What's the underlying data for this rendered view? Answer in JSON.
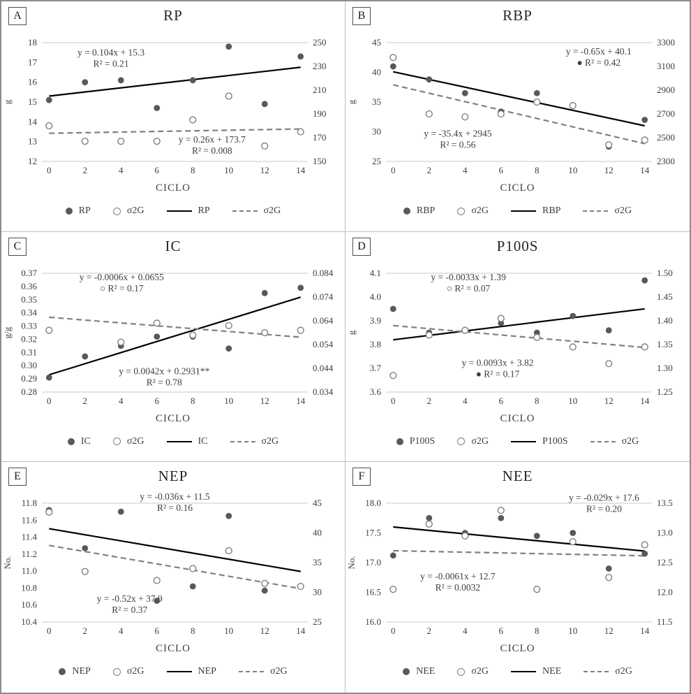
{
  "colors": {
    "point_filled": "#595959",
    "point_open_stroke": "#7f7f7f",
    "trend_solid": "#000000",
    "trend_dashed": "#7f7f7f",
    "text": "#3d3d3d",
    "gridline": "#c9c9c9",
    "panel_border": "#bfbfbf",
    "outer_border": "#8c8c8c"
  },
  "chart_data": [
    {
      "id": "A",
      "type": "scatter",
      "title": "RP",
      "xlabel": "CICLO",
      "ylabel_left": "g",
      "x_range": [
        -0.4,
        14.4
      ],
      "x_ticks": [
        "0",
        "2",
        "4",
        "6",
        "8",
        "10",
        "12",
        "14"
      ],
      "axis_left": {
        "range": [
          12,
          18
        ],
        "ticks": [
          "12",
          "13",
          "14",
          "15",
          "16",
          "17",
          "18"
        ]
      },
      "axis_right": {
        "range": [
          150,
          250
        ],
        "ticks": [
          "150",
          "170",
          "190",
          "210",
          "230",
          "250"
        ]
      },
      "series": [
        {
          "name": "RP",
          "kind": "scatter",
          "marker": "filled",
          "axis": "left",
          "points": [
            [
              0,
              15.1
            ],
            [
              2,
              16.0
            ],
            [
              4,
              16.1
            ],
            [
              6,
              14.7
            ],
            [
              8,
              16.1
            ],
            [
              10,
              17.8
            ],
            [
              12,
              14.9
            ],
            [
              14,
              17.3
            ]
          ]
        },
        {
          "name": "σ2G",
          "kind": "scatter",
          "marker": "open",
          "axis": "right",
          "points": [
            [
              0,
              180
            ],
            [
              2,
              167
            ],
            [
              4,
              167
            ],
            [
              6,
              167
            ],
            [
              8,
              185
            ],
            [
              10,
              205
            ],
            [
              12,
              163
            ],
            [
              14,
              175
            ]
          ]
        },
        {
          "name": "RP",
          "kind": "trendline",
          "style": "solid",
          "axis": "left",
          "slope": 0.104,
          "intercept": 15.3
        },
        {
          "name": "σ2G",
          "kind": "trendline",
          "style": "dashed",
          "axis": "right",
          "slope": 0.26,
          "intercept": 173.7
        }
      ],
      "annotations": [
        {
          "lines": [
            "y = 0.104x + 15.3",
            "R² = 0.21"
          ],
          "fx": 0.26,
          "fy": 0.11
        },
        {
          "lines": [
            "y = 0.26x + 173.7",
            "R² = 0.008"
          ],
          "fx": 0.64,
          "fy": 0.84
        }
      ],
      "legend": [
        {
          "marker": "filled",
          "label": "RP"
        },
        {
          "marker": "open",
          "label": "σ2G"
        },
        {
          "marker": "solid",
          "label": "RP"
        },
        {
          "marker": "dashed",
          "label": "σ2G"
        }
      ]
    },
    {
      "id": "B",
      "type": "scatter",
      "title": "RBP",
      "xlabel": "CICLO",
      "ylabel_left": "g",
      "x_range": [
        -0.4,
        14.4
      ],
      "x_ticks": [
        "0",
        "2",
        "4",
        "6",
        "8",
        "10",
        "12",
        "14"
      ],
      "axis_left": {
        "range": [
          25,
          45
        ],
        "ticks": [
          "25",
          "30",
          "35",
          "40",
          "45"
        ]
      },
      "axis_right": {
        "range": [
          2300,
          3300
        ],
        "ticks": [
          "2300",
          "2500",
          "2700",
          "2900",
          "3100",
          "3300"
        ]
      },
      "series": [
        {
          "name": "RBP",
          "kind": "scatter",
          "marker": "filled",
          "axis": "left",
          "points": [
            [
              0,
              41
            ],
            [
              2,
              38.8
            ],
            [
              4,
              36.5
            ],
            [
              6,
              33.4
            ],
            [
              8,
              36.5
            ],
            [
              10,
              34.5
            ],
            [
              12,
              27.5
            ],
            [
              14,
              32
            ]
          ]
        },
        {
          "name": "σ2G",
          "kind": "scatter",
          "marker": "open",
          "axis": "right",
          "points": [
            [
              0,
              3175
            ],
            [
              2,
              2700
            ],
            [
              4,
              2675
            ],
            [
              6,
              2700
            ],
            [
              8,
              2800
            ],
            [
              10,
              2770
            ],
            [
              12,
              2440
            ],
            [
              14,
              2480
            ]
          ]
        },
        {
          "name": "RBP",
          "kind": "trendline",
          "style": "solid",
          "axis": "left",
          "slope": -0.65,
          "intercept": 40.1
        },
        {
          "name": "σ2G",
          "kind": "trendline",
          "style": "dashed",
          "axis": "right",
          "slope": -35.4,
          "intercept": 2945
        }
      ],
      "annotations": [
        {
          "lines": [
            "y = -0.65x + 40.1",
            "● R² = 0.42"
          ],
          "fx": 0.8,
          "fy": 0.1
        },
        {
          "lines": [
            "y = -35.4x + 2945",
            "R² = 0.56"
          ],
          "fx": 0.27,
          "fy": 0.79
        }
      ],
      "legend": [
        {
          "marker": "filled",
          "label": "RBP"
        },
        {
          "marker": "open",
          "label": "σ2G"
        },
        {
          "marker": "solid",
          "label": "RBP"
        },
        {
          "marker": "dashed",
          "label": "σ2G"
        }
      ]
    },
    {
      "id": "C",
      "type": "scatter",
      "title": "IC",
      "xlabel": "CICLO",
      "ylabel_left": "g/g",
      "x_range": [
        -0.4,
        14.4
      ],
      "x_ticks": [
        "0",
        "2",
        "4",
        "6",
        "8",
        "10",
        "12",
        "14"
      ],
      "axis_left": {
        "range": [
          0.28,
          0.37
        ],
        "ticks": [
          "0.28",
          "0.29",
          "0.30",
          "0.31",
          "0.32",
          "0.33",
          "0.34",
          "0.35",
          "0.36",
          "0.37"
        ]
      },
      "axis_right": {
        "range": [
          0.034,
          0.084
        ],
        "ticks": [
          "0.034",
          "0.044",
          "0.054",
          "0.064",
          "0.074",
          "0.084"
        ]
      },
      "series": [
        {
          "name": "IC",
          "kind": "scatter",
          "marker": "filled",
          "axis": "left",
          "points": [
            [
              0,
              0.291
            ],
            [
              2,
              0.307
            ],
            [
              4,
              0.315
            ],
            [
              6,
              0.322
            ],
            [
              8,
              0.322
            ],
            [
              10,
              0.313
            ],
            [
              12,
              0.355
            ],
            [
              14,
              0.359
            ]
          ]
        },
        {
          "name": "σ2G",
          "kind": "scatter",
          "marker": "open",
          "axis": "right",
          "points": [
            [
              0,
              0.06
            ],
            [
              4,
              0.055
            ],
            [
              6,
              0.063
            ],
            [
              8,
              0.058
            ],
            [
              10,
              0.062
            ],
            [
              12,
              0.059
            ],
            [
              14,
              0.06
            ]
          ]
        },
        {
          "name": "IC",
          "kind": "trendline",
          "style": "solid",
          "axis": "left",
          "slope": 0.0042,
          "intercept": 0.2931
        },
        {
          "name": "σ2G",
          "kind": "trendline",
          "style": "dashed",
          "axis": "right",
          "slope": -0.0006,
          "intercept": 0.0655
        }
      ],
      "annotations": [
        {
          "lines": [
            "y = -0.0006x + 0.0655",
            "○ R² = 0.17"
          ],
          "fx": 0.3,
          "fy": 0.06
        },
        {
          "lines": [
            "y = 0.0042x + 0.2931**",
            "R² = 0.78"
          ],
          "fx": 0.46,
          "fy": 0.85
        }
      ],
      "legend": [
        {
          "marker": "filled",
          "label": "IC"
        },
        {
          "marker": "open",
          "label": "σ2G"
        },
        {
          "marker": "solid",
          "label": "IC"
        },
        {
          "marker": "dashed",
          "label": "σ2G"
        }
      ]
    },
    {
      "id": "D",
      "type": "scatter",
      "title": "P100S",
      "xlabel": "CICLO",
      "ylabel_left": "g",
      "x_range": [
        -0.4,
        14.4
      ],
      "x_ticks": [
        "0",
        "2",
        "4",
        "6",
        "8",
        "10",
        "12",
        "14"
      ],
      "axis_left": {
        "range": [
          3.6,
          4.1
        ],
        "ticks": [
          "3.6",
          "3.7",
          "3.8",
          "3.9",
          "4.0",
          "4.1"
        ]
      },
      "axis_right": {
        "range": [
          1.25,
          1.5
        ],
        "ticks": [
          "1.25",
          "1.30",
          "1.35",
          "1.40",
          "1.45",
          "1.50"
        ]
      },
      "series": [
        {
          "name": "P100S",
          "kind": "scatter",
          "marker": "filled",
          "axis": "left",
          "points": [
            [
              0,
              3.95
            ],
            [
              2,
              3.85
            ],
            [
              4,
              3.86
            ],
            [
              6,
              3.89
            ],
            [
              8,
              3.85
            ],
            [
              10,
              3.92
            ],
            [
              12,
              3.86
            ],
            [
              14,
              4.07
            ]
          ]
        },
        {
          "name": "σ2G",
          "kind": "scatter",
          "marker": "open",
          "axis": "right",
          "points": [
            [
              0,
              1.285
            ],
            [
              2,
              1.37
            ],
            [
              4,
              1.38
            ],
            [
              6,
              1.405
            ],
            [
              8,
              1.365
            ],
            [
              10,
              1.345
            ],
            [
              12,
              1.31
            ],
            [
              14,
              1.345
            ]
          ]
        },
        {
          "name": "P100S",
          "kind": "trendline",
          "style": "solid",
          "axis": "left",
          "slope": 0.0093,
          "intercept": 3.82
        },
        {
          "name": "σ2G",
          "kind": "trendline",
          "style": "dashed",
          "axis": "right",
          "slope": -0.0033,
          "intercept": 1.39
        }
      ],
      "annotations": [
        {
          "lines": [
            "y = -0.0033x + 1.39",
            "○ R² = 0.07"
          ],
          "fx": 0.31,
          "fy": 0.06
        },
        {
          "lines": [
            "y = 0.0093x + 3.82",
            "● R² = 0.17"
          ],
          "fx": 0.42,
          "fy": 0.78
        }
      ],
      "legend": [
        {
          "marker": "filled",
          "label": "P100S"
        },
        {
          "marker": "open",
          "label": "σ2G"
        },
        {
          "marker": "solid",
          "label": "P100S"
        },
        {
          "marker": "dashed",
          "label": "σ2G"
        }
      ]
    },
    {
      "id": "E",
      "type": "scatter",
      "title": "NEP",
      "xlabel": "CICLO",
      "ylabel_left": "No.",
      "x_range": [
        -0.4,
        14.4
      ],
      "x_ticks": [
        "0",
        "2",
        "4",
        "6",
        "8",
        "10",
        "12",
        "14"
      ],
      "axis_left": {
        "range": [
          10.4,
          11.8
        ],
        "ticks": [
          "10.4",
          "10.6",
          "10.8",
          "11.0",
          "11.2",
          "11.4",
          "11.6",
          "11.8"
        ]
      },
      "axis_right": {
        "range": [
          25,
          45
        ],
        "ticks": [
          "25",
          "30",
          "35",
          "40",
          "45"
        ]
      },
      "series": [
        {
          "name": "NEP",
          "kind": "scatter",
          "marker": "filled",
          "axis": "left",
          "points": [
            [
              0,
              11.72
            ],
            [
              2,
              11.27
            ],
            [
              4,
              11.7
            ],
            [
              6,
              10.65
            ],
            [
              8,
              10.82
            ],
            [
              10,
              11.65
            ],
            [
              12,
              10.77
            ]
          ]
        },
        {
          "name": "σ2G",
          "kind": "scatter",
          "marker": "open",
          "axis": "right",
          "points": [
            [
              0,
              43.5
            ],
            [
              2,
              33.5
            ],
            [
              6,
              32
            ],
            [
              8,
              34
            ],
            [
              10,
              37
            ],
            [
              12,
              31.5
            ],
            [
              14,
              31
            ]
          ]
        },
        {
          "name": "NEP",
          "kind": "trendline",
          "style": "solid",
          "axis": "left",
          "slope": -0.036,
          "intercept": 11.5
        },
        {
          "name": "σ2G",
          "kind": "trendline",
          "style": "dashed",
          "axis": "right",
          "slope": -0.52,
          "intercept": 37.9
        }
      ],
      "annotations": [
        {
          "lines": [
            "y = -0.036x + 11.5",
            "R² = 0.16"
          ],
          "fx": 0.5,
          "fy": -0.03
        },
        {
          "lines": [
            "y = -0.52x + 37.9",
            "R² = 0.37"
          ],
          "fx": 0.33,
          "fy": 0.83
        }
      ],
      "legend": [
        {
          "marker": "filled",
          "label": "NEP"
        },
        {
          "marker": "open",
          "label": "σ2G"
        },
        {
          "marker": "solid",
          "label": "NEP"
        },
        {
          "marker": "dashed",
          "label": "σ2G"
        }
      ]
    },
    {
      "id": "F",
      "type": "scatter",
      "title": "NEE",
      "xlabel": "CICLO",
      "ylabel_left": "No.",
      "x_range": [
        -0.4,
        14.4
      ],
      "x_ticks": [
        "0",
        "2",
        "4",
        "6",
        "8",
        "10",
        "12",
        "14"
      ],
      "axis_left": {
        "range": [
          16.0,
          18.0
        ],
        "ticks": [
          "16.0",
          "16.5",
          "17.0",
          "17.5",
          "18.0"
        ]
      },
      "axis_right": {
        "range": [
          11.5,
          13.5
        ],
        "ticks": [
          "11.5",
          "12.0",
          "12.5",
          "13.0",
          "13.5"
        ]
      },
      "series": [
        {
          "name": "NEE",
          "kind": "scatter",
          "marker": "filled",
          "axis": "left",
          "points": [
            [
              0,
              17.12
            ],
            [
              2,
              17.75
            ],
            [
              4,
              17.5
            ],
            [
              6,
              17.75
            ],
            [
              8,
              17.45
            ],
            [
              10,
              17.5
            ],
            [
              12,
              16.9
            ],
            [
              14,
              17.15
            ]
          ]
        },
        {
          "name": "σ2G",
          "kind": "scatter",
          "marker": "open",
          "axis": "right",
          "points": [
            [
              0,
              12.05
            ],
            [
              2,
              13.15
            ],
            [
              4,
              12.95
            ],
            [
              6,
              13.38
            ],
            [
              8,
              12.05
            ],
            [
              10,
              12.85
            ],
            [
              12,
              12.25
            ],
            [
              14,
              12.8
            ]
          ]
        },
        {
          "name": "NEE",
          "kind": "trendline",
          "style": "solid",
          "axis": "left",
          "slope": -0.029,
          "intercept": 17.6
        },
        {
          "name": "σ2G",
          "kind": "trendline",
          "style": "dashed",
          "axis": "right",
          "slope": -0.0061,
          "intercept": 12.7
        }
      ],
      "annotations": [
        {
          "lines": [
            "y = -0.029x + 17.6",
            "R² = 0.20"
          ],
          "fx": 0.82,
          "fy": -0.02
        },
        {
          "lines": [
            "y = -0.0061x + 12.7",
            "R² = 0.0032"
          ],
          "fx": 0.27,
          "fy": 0.64
        }
      ],
      "legend": [
        {
          "marker": "filled",
          "label": "NEE"
        },
        {
          "marker": "open",
          "label": "σ2G"
        },
        {
          "marker": "solid",
          "label": "NEE"
        },
        {
          "marker": "dashed",
          "label": "σ2G"
        }
      ]
    }
  ]
}
